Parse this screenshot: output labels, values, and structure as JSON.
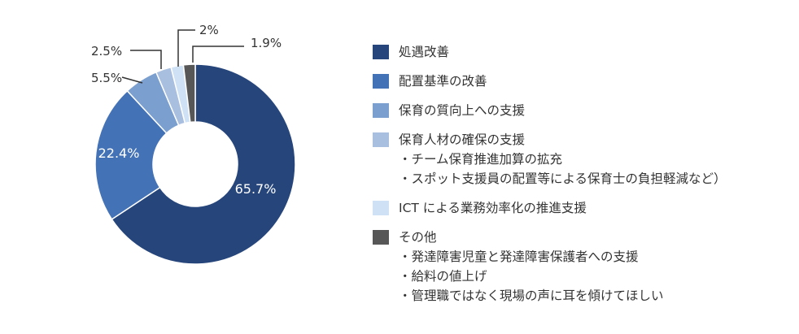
{
  "chart_data": {
    "type": "pie",
    "donut": true,
    "series": [
      {
        "name": "処遇改善",
        "value": 65.7,
        "value_label": "65.7%",
        "color": "#26457b",
        "sub_items": []
      },
      {
        "name": "配置基準の改善",
        "value": 22.4,
        "value_label": "22.4%",
        "color": "#4472b6",
        "sub_items": []
      },
      {
        "name": "保育の質向上への支援",
        "value": 5.5,
        "value_label": "5.5%",
        "color": "#7b9fcf",
        "sub_items": []
      },
      {
        "name": "保育人材の確保の支援",
        "value": 2.5,
        "value_label": "2.5%",
        "color": "#a9bfdf",
        "sub_items": [
          "・チーム保育推進加算の拡充",
          "・スポット支援員の配置等による保育士の負担軽減など）"
        ]
      },
      {
        "name": "ICT による業務効率化の推進支援",
        "value": 2,
        "value_label": "2%",
        "color": "#cfe1f4",
        "sub_items": []
      },
      {
        "name": "その他",
        "value": 1.9,
        "value_label": "1.9%",
        "color": "#575757",
        "sub_items": [
          "・発達障害児童と発達障害保護者への支援",
          "・給料の値上げ",
          "・管理職ではなく現場の声に耳を傾けてほしい"
        ]
      }
    ],
    "legend_position": "right"
  }
}
